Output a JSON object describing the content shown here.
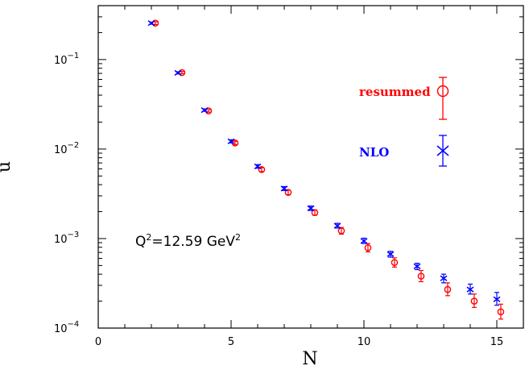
{
  "chart_data": {
    "type": "scatter",
    "xlabel": "N",
    "ylabel": "u",
    "xlim": [
      0,
      16
    ],
    "ylim": [
      0.0001,
      0.4
    ],
    "y_scale": "log",
    "x_ticks": [
      0,
      5,
      10,
      15
    ],
    "y_ticks": [
      {
        "value": 0.1,
        "base": "10",
        "exp": "−1"
      },
      {
        "value": 0.01,
        "base": "10",
        "exp": "−2"
      },
      {
        "value": 0.001,
        "base": "10",
        "exp": "−3"
      },
      {
        "value": 0.0001,
        "base": "10",
        "exp": "−4"
      }
    ],
    "annotation": {
      "prefix": "Q",
      "sup1": "2",
      "middle": "=12.59 GeV",
      "sup2": "2"
    },
    "legend_position": "right",
    "series": [
      {
        "name": "resummed",
        "color": "#ff0000",
        "marker": "circle",
        "points": [
          {
            "x": 2.15,
            "y": 0.255,
            "lo": 0.246,
            "hi": 0.264
          },
          {
            "x": 3.15,
            "y": 0.0715,
            "lo": 0.0695,
            "hi": 0.0735
          },
          {
            "x": 4.15,
            "y": 0.0267,
            "lo": 0.0258,
            "hi": 0.0276
          },
          {
            "x": 5.15,
            "y": 0.0117,
            "lo": 0.0112,
            "hi": 0.0122
          },
          {
            "x": 6.15,
            "y": 0.0059,
            "lo": 0.0056,
            "hi": 0.0062
          },
          {
            "x": 7.15,
            "y": 0.00328,
            "lo": 0.00309,
            "hi": 0.00348
          },
          {
            "x": 8.15,
            "y": 0.00195,
            "lo": 0.00182,
            "hi": 0.00209
          },
          {
            "x": 9.15,
            "y": 0.00122,
            "lo": 0.00112,
            "hi": 0.00133
          },
          {
            "x": 10.15,
            "y": 0.00079,
            "lo": 0.00071,
            "hi": 0.00088
          },
          {
            "x": 11.15,
            "y": 0.00054,
            "lo": 0.00048,
            "hi": 0.00061
          },
          {
            "x": 12.15,
            "y": 0.00038,
            "lo": 0.00033,
            "hi": 0.00044
          },
          {
            "x": 13.15,
            "y": 0.00027,
            "lo": 0.00023,
            "hi": 0.00032
          },
          {
            "x": 14.15,
            "y": 0.0002,
            "lo": 0.00017,
            "hi": 0.00024
          },
          {
            "x": 15.15,
            "y": 0.000152,
            "lo": 0.000126,
            "hi": 0.000185
          }
        ]
      },
      {
        "name": "NLO",
        "color": "#0000ff",
        "marker": "x",
        "points": [
          {
            "x": 2,
            "y": 0.255,
            "lo": 0.248,
            "hi": 0.262
          },
          {
            "x": 3,
            "y": 0.071,
            "lo": 0.069,
            "hi": 0.073
          },
          {
            "x": 4,
            "y": 0.0272,
            "lo": 0.0264,
            "hi": 0.0281
          },
          {
            "x": 5,
            "y": 0.0122,
            "lo": 0.0117,
            "hi": 0.0127
          },
          {
            "x": 6,
            "y": 0.0064,
            "lo": 0.0061,
            "hi": 0.0067
          },
          {
            "x": 7,
            "y": 0.00362,
            "lo": 0.00344,
            "hi": 0.00381
          },
          {
            "x": 8,
            "y": 0.00218,
            "lo": 0.00206,
            "hi": 0.00231
          },
          {
            "x": 9,
            "y": 0.00139,
            "lo": 0.00131,
            "hi": 0.00148
          },
          {
            "x": 10,
            "y": 0.00094,
            "lo": 0.00088,
            "hi": 0.00101
          },
          {
            "x": 11,
            "y": 0.00067,
            "lo": 0.00062,
            "hi": 0.00072
          },
          {
            "x": 12,
            "y": 0.00049,
            "lo": 0.00045,
            "hi": 0.00053
          },
          {
            "x": 13,
            "y": 0.00036,
            "lo": 0.00032,
            "hi": 0.0004
          },
          {
            "x": 14,
            "y": 0.00027,
            "lo": 0.00024,
            "hi": 0.00031
          },
          {
            "x": 15,
            "y": 0.00021,
            "lo": 0.00018,
            "hi": 0.00025
          }
        ]
      }
    ]
  }
}
